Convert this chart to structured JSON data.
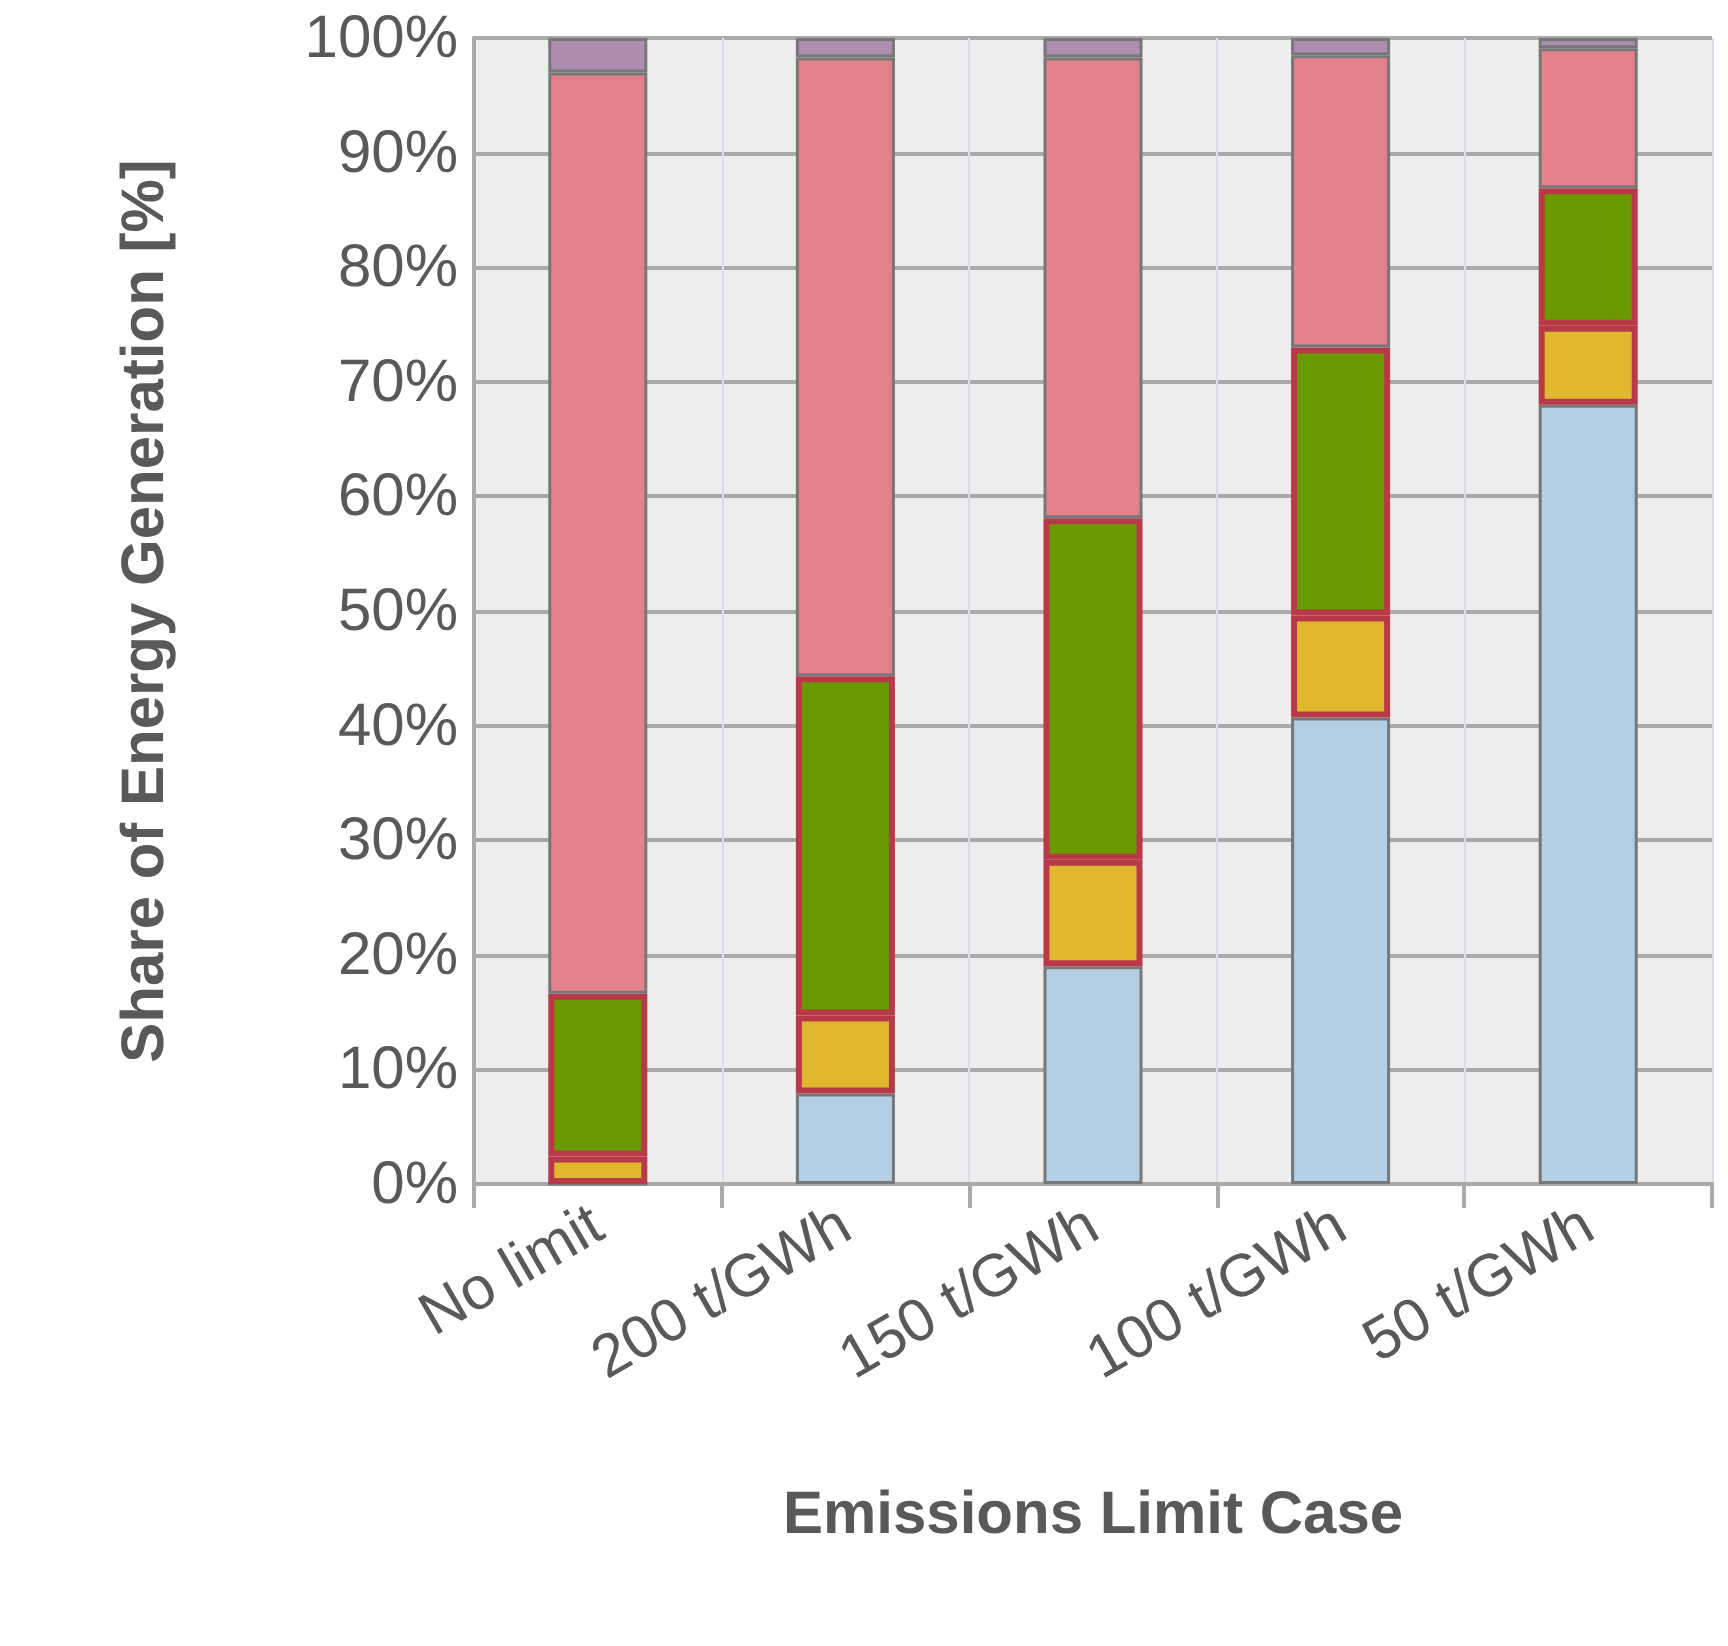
{
  "chart_data": {
    "type": "bar",
    "stacked": true,
    "xlabel": "Emissions Limit Case",
    "ylabel": "Share of Energy Generation [%]",
    "categories": [
      "No limit",
      "200 t/GWh",
      "150 t/GWh",
      "100 t/GWh",
      "50 t/GWh"
    ],
    "series": [
      {
        "color": "#b4cfe4",
        "values": [
          0,
          7.9,
          19.0,
          40.7,
          68.0
        ]
      },
      {
        "color": "#e0b830",
        "values": [
          2.4,
          6.8,
          9.3,
          8.9,
          6.9
        ]
      },
      {
        "color": "#6a9a00",
        "values": [
          14.2,
          29.6,
          29.8,
          23.4,
          12.0
        ]
      },
      {
        "color": "#e2838c",
        "values": [
          80.4,
          54.0,
          40.2,
          25.5,
          12.2
        ]
      },
      {
        "color": "#ad8eb0",
        "values": [
          3.0,
          1.7,
          1.7,
          1.5,
          0.9
        ]
      }
    ],
    "ylim": [
      0,
      100
    ],
    "yticks": [
      {
        "value": 0,
        "label": "0%"
      },
      {
        "value": 10,
        "label": "10%"
      },
      {
        "value": 20,
        "label": "20%"
      },
      {
        "value": 30,
        "label": "30%"
      },
      {
        "value": 40,
        "label": "40%"
      },
      {
        "value": 50,
        "label": "50%"
      },
      {
        "value": 60,
        "label": "60%"
      },
      {
        "value": 70,
        "label": "70%"
      },
      {
        "value": 80,
        "label": "80%"
      },
      {
        "value": 90,
        "label": "90%"
      },
      {
        "value": 100,
        "label": "100%"
      }
    ],
    "grid": true
  }
}
